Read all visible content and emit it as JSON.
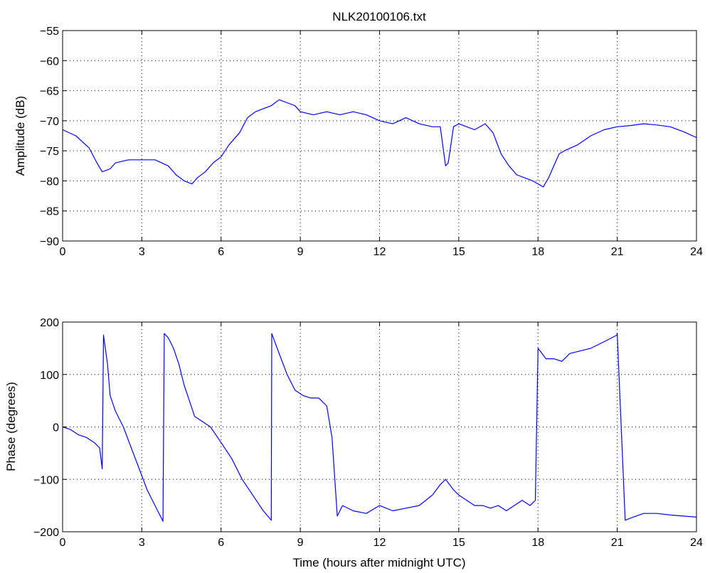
{
  "figure": {
    "background": "#ffffff",
    "line_color": "#0000ff",
    "axis_color": "#000000",
    "grid_style": "dotted"
  },
  "chart_data": [
    {
      "type": "line",
      "title": "NLK20100106.txt",
      "xlabel": "",
      "ylabel": "Amplitude (dB)",
      "xlim": [
        0,
        24
      ],
      "ylim": [
        -90,
        -55
      ],
      "xticks": [
        0,
        3,
        6,
        9,
        12,
        15,
        18,
        21,
        24
      ],
      "yticks": [
        -55,
        -60,
        -65,
        -70,
        -75,
        -80,
        -85,
        -90
      ],
      "grid": true,
      "series": [
        {
          "x": [
            0,
            0.5,
            1.0,
            1.3,
            1.5,
            1.8,
            2.0,
            2.5,
            3.0,
            3.5,
            4.0,
            4.3,
            4.6,
            4.9,
            5.1,
            5.4,
            5.7,
            6.0,
            6.3,
            6.7,
            7.0,
            7.3,
            7.6,
            7.9,
            8.2,
            8.5,
            8.8,
            9.0,
            9.5,
            10.0,
            10.5,
            11.0,
            11.5,
            12.0,
            12.5,
            13.0,
            13.5,
            14.0,
            14.3,
            14.5,
            14.6,
            14.8,
            15.0,
            15.3,
            15.6,
            16.0,
            16.3,
            16.6,
            16.9,
            17.2,
            17.5,
            17.8,
            18.0,
            18.2,
            18.4,
            18.6,
            18.8,
            19.0,
            19.5,
            20.0,
            20.5,
            21.0,
            21.5,
            22.0,
            22.5,
            23.0,
            23.5,
            24.0
          ],
          "y": [
            -71.5,
            -72.5,
            -74.5,
            -77.0,
            -78.5,
            -78.0,
            -77.0,
            -76.5,
            -76.5,
            -76.5,
            -77.5,
            -79.0,
            -80.0,
            -80.5,
            -79.5,
            -78.5,
            -77.0,
            -76.0,
            -74.0,
            -72.0,
            -69.5,
            -68.5,
            -68.0,
            -67.5,
            -66.5,
            -67.0,
            -67.5,
            -68.5,
            -69.0,
            -68.5,
            -69.0,
            -68.5,
            -69.0,
            -70.0,
            -70.5,
            -69.5,
            -70.5,
            -71.0,
            -71.0,
            -77.5,
            -77.0,
            -71.0,
            -70.5,
            -71.0,
            -71.5,
            -70.5,
            -72.0,
            -75.5,
            -77.5,
            -79.0,
            -79.5,
            -80.0,
            -80.5,
            -81.0,
            -79.5,
            -77.5,
            -75.5,
            -75.0,
            -74.0,
            -72.5,
            -71.5,
            -71.0,
            -70.8,
            -70.5,
            -70.7,
            -71.0,
            -71.8,
            -72.8
          ]
        }
      ]
    },
    {
      "type": "line",
      "title": "",
      "xlabel": "Time (hours after midnight UTC)",
      "ylabel": "Phase (degrees)",
      "xlim": [
        0,
        24
      ],
      "ylim": [
        -200,
        200
      ],
      "xticks": [
        0,
        3,
        6,
        9,
        12,
        15,
        18,
        21,
        24
      ],
      "yticks": [
        200,
        100,
        0,
        -100,
        -200
      ],
      "grid": true,
      "series": [
        {
          "x": [
            0,
            0.3,
            0.6,
            0.9,
            1.2,
            1.4,
            1.5,
            1.55,
            1.7,
            1.8,
            2.0,
            2.3,
            2.6,
            2.9,
            3.2,
            3.5,
            3.7,
            3.8,
            3.85,
            4.0,
            4.2,
            4.4,
            4.6,
            4.8,
            5.0,
            5.3,
            5.6,
            6.0,
            6.4,
            6.8,
            7.2,
            7.6,
            7.9,
            7.92,
            8.2,
            8.5,
            8.8,
            9.1,
            9.4,
            9.7,
            10.0,
            10.2,
            10.4,
            10.6,
            11.0,
            11.5,
            12.0,
            12.5,
            13.0,
            13.5,
            14.0,
            14.3,
            14.5,
            14.8,
            15.0,
            15.3,
            15.6,
            15.9,
            16.2,
            16.5,
            16.8,
            17.1,
            17.4,
            17.7,
            17.9,
            18.0,
            18.3,
            18.6,
            18.9,
            19.2,
            19.6,
            20.0,
            20.4,
            20.8,
            20.98,
            21.0,
            21.3,
            21.6,
            22.0,
            22.5,
            23.0,
            23.5,
            24.0
          ],
          "y": [
            0,
            -5,
            -15,
            -20,
            -30,
            -40,
            -80,
            175,
            120,
            60,
            30,
            0,
            -40,
            -80,
            -120,
            -150,
            -170,
            -180,
            178,
            170,
            150,
            120,
            80,
            50,
            20,
            10,
            0,
            -30,
            -60,
            -100,
            -130,
            -160,
            -178,
            178,
            140,
            100,
            70,
            60,
            55,
            55,
            40,
            -20,
            -170,
            -150,
            -160,
            -165,
            -150,
            -160,
            -155,
            -150,
            -130,
            -110,
            -100,
            -120,
            -130,
            -140,
            -150,
            -150,
            -155,
            -150,
            -160,
            -150,
            -140,
            -150,
            -140,
            150,
            130,
            130,
            125,
            140,
            145,
            150,
            160,
            170,
            175,
            178,
            -178,
            -172,
            -165,
            -165,
            -168,
            -170,
            -172
          ]
        }
      ]
    }
  ]
}
